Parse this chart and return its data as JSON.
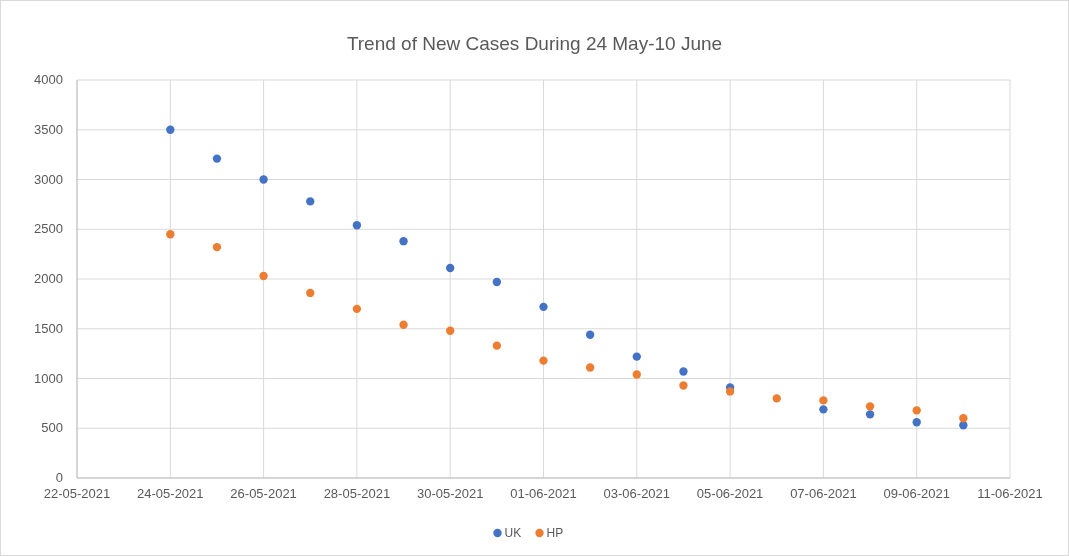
{
  "chart_data": {
    "type": "scatter",
    "title": "Trend of New Cases During 24 May-10 June",
    "x": [
      "2021-05-24",
      "2021-05-25",
      "2021-05-26",
      "2021-05-27",
      "2021-05-28",
      "2021-05-29",
      "2021-05-30",
      "2021-05-31",
      "2021-06-01",
      "2021-06-02",
      "2021-06-03",
      "2021-06-04",
      "2021-06-05",
      "2021-06-06",
      "2021-06-07",
      "2021-06-08",
      "2021-06-09",
      "2021-06-10"
    ],
    "series": [
      {
        "name": "UK",
        "color": "#4472c4",
        "values": [
          3500,
          3210,
          3000,
          2780,
          2540,
          2380,
          2110,
          1970,
          1720,
          1440,
          1220,
          1070,
          910,
          null,
          690,
          640,
          560,
          530
        ]
      },
      {
        "name": "HP",
        "color": "#ed7d31",
        "values": [
          2450,
          2320,
          2030,
          1860,
          1700,
          1540,
          1480,
          1330,
          1180,
          1110,
          1040,
          930,
          870,
          800,
          780,
          720,
          680,
          600
        ]
      }
    ],
    "xlim": [
      "2021-05-22",
      "2021-06-11"
    ],
    "xticks": [
      {
        "value": "2021-05-22",
        "label": "22-05-2021"
      },
      {
        "value": "2021-05-24",
        "label": "24-05-2021"
      },
      {
        "value": "2021-05-26",
        "label": "26-05-2021"
      },
      {
        "value": "2021-05-28",
        "label": "28-05-2021"
      },
      {
        "value": "2021-05-30",
        "label": "30-05-2021"
      },
      {
        "value": "2021-06-01",
        "label": "01-06-2021"
      },
      {
        "value": "2021-06-03",
        "label": "03-06-2021"
      },
      {
        "value": "2021-06-05",
        "label": "05-06-2021"
      },
      {
        "value": "2021-06-07",
        "label": "07-06-2021"
      },
      {
        "value": "2021-06-09",
        "label": "09-06-2021"
      },
      {
        "value": "2021-06-11",
        "label": "11-06-2021"
      }
    ],
    "ylim": [
      0,
      4000
    ],
    "yticks": [
      0,
      500,
      1000,
      1500,
      2000,
      2500,
      3000,
      3500,
      4000
    ],
    "grid": true,
    "legend": "bottom",
    "marker": "circle"
  }
}
